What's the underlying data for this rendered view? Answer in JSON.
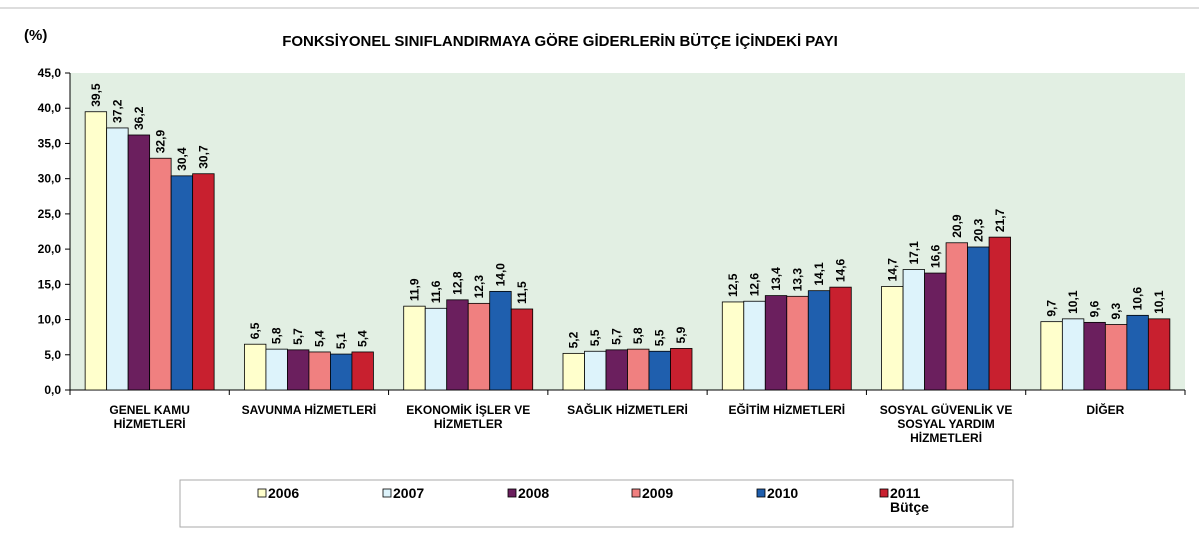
{
  "chart_data": {
    "type": "bar",
    "title": "FONKSİYONEL SINIFLANDIRMAYA GÖRE GİDERLERİN BÜTÇE İÇİNDEKİ PAYI",
    "ylabel": "(%)",
    "categories": [
      "GENEL KAMU\nHİZMETLERİ",
      "SAVUNMA HİZMETLERİ",
      "EKONOMİK İŞLER VE\nHİZMETLER",
      "SAĞLIK HİZMETLERİ",
      "EĞİTİM HİZMETLERİ",
      "SOSYAL GÜVENLİK VE\nSOSYAL YARDIM\nHİZMETLERİ",
      "DİĞER"
    ],
    "series": [
      {
        "name": "2006",
        "color": "#ffffcc",
        "values": [
          39.5,
          6.5,
          11.9,
          5.2,
          12.5,
          14.7,
          9.7
        ],
        "value_labels": [
          "39,5",
          "6,5",
          "11,9",
          "5,2",
          "12,5",
          "14,7",
          "9,7"
        ]
      },
      {
        "name": "2007",
        "color": "#ddf3fb",
        "values": [
          37.2,
          5.8,
          11.6,
          5.5,
          12.6,
          17.1,
          10.1
        ],
        "value_labels": [
          "37,2",
          "5,8",
          "11,6",
          "5,5",
          "12,6",
          "17,1",
          "10,1"
        ]
      },
      {
        "name": "2008",
        "color": "#6b1f5e",
        "values": [
          36.2,
          5.7,
          12.8,
          5.7,
          13.4,
          16.6,
          9.6
        ],
        "value_labels": [
          "36,2",
          "5,7",
          "12,8",
          "5,7",
          "13,4",
          "16,6",
          "9,6"
        ]
      },
      {
        "name": "2009",
        "color": "#f08080",
        "values": [
          32.9,
          5.4,
          12.3,
          5.8,
          13.3,
          20.9,
          9.3
        ],
        "value_labels": [
          "32,9",
          "5,4",
          "12,3",
          "5,8",
          "13,3",
          "20,9",
          "9,3"
        ]
      },
      {
        "name": "2010",
        "color": "#1f5fae",
        "values": [
          30.4,
          5.1,
          14.0,
          5.5,
          14.1,
          20.3,
          10.6
        ],
        "value_labels": [
          "30,4",
          "5,1",
          "14,0",
          "5,5",
          "14,1",
          "20,3",
          "10,6"
        ]
      },
      {
        "name": "2011\nBütçe",
        "color": "#c8202f",
        "values": [
          30.7,
          5.4,
          11.5,
          5.9,
          14.6,
          21.7,
          10.1
        ],
        "value_labels": [
          "30,7",
          "5,4",
          "11,5",
          "5,9",
          "14,6",
          "21,7",
          "10,1"
        ]
      }
    ],
    "ylim": [
      0,
      45
    ],
    "yticks": [
      {
        "value": 0,
        "label": "0,0"
      },
      {
        "value": 5,
        "label": "5,0"
      },
      {
        "value": 10,
        "label": "10,0"
      },
      {
        "value": 15,
        "label": "15,0"
      },
      {
        "value": 20,
        "label": "20,0"
      },
      {
        "value": 25,
        "label": "25,0"
      },
      {
        "value": 30,
        "label": "30,0"
      },
      {
        "value": 35,
        "label": "35,0"
      },
      {
        "value": 40,
        "label": "40,0"
      },
      {
        "value": 45,
        "label": "45,0"
      }
    ],
    "legend": "bottom"
  }
}
